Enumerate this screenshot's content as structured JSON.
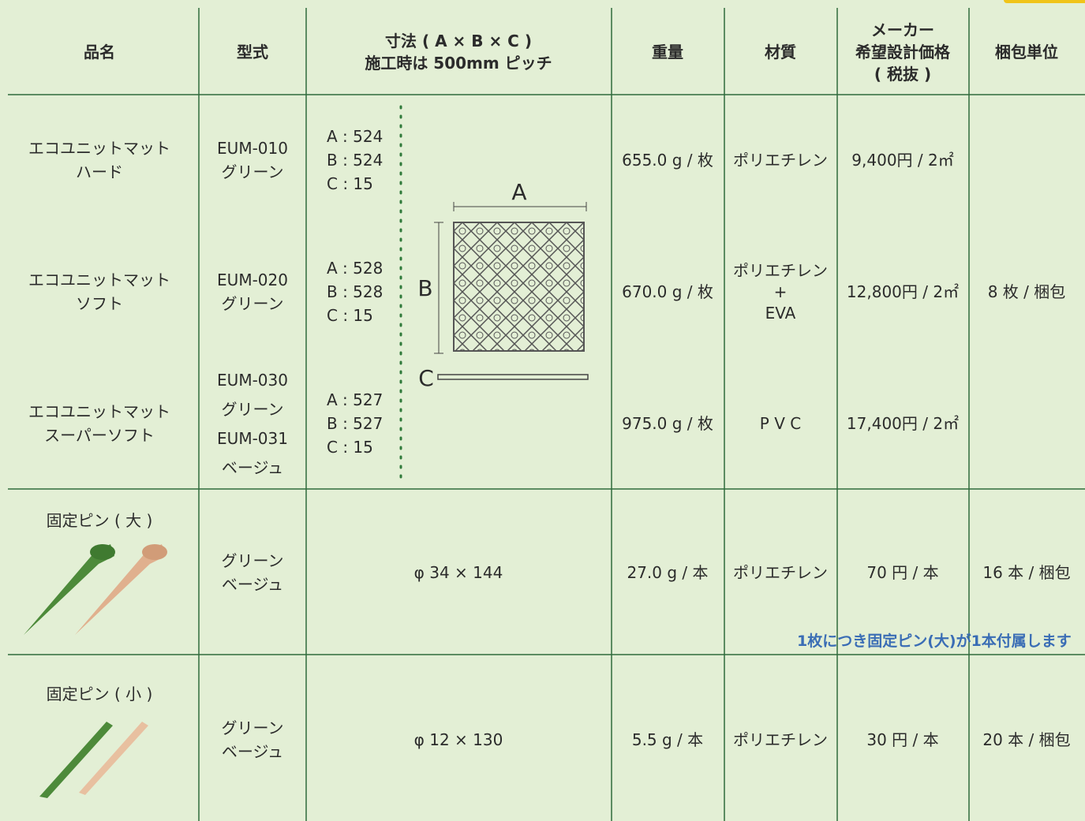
{
  "table": {
    "headers": [
      [
        "品名"
      ],
      [
        "型式"
      ],
      [
        "寸法 ( A × B × C )",
        "施工時は 500mm ピッチ"
      ],
      [
        "重量"
      ],
      [
        "材質"
      ],
      [
        "メーカー",
        "希望設計価格",
        "( 税抜 )"
      ],
      [
        "梱包単位"
      ]
    ],
    "mats": [
      {
        "name": [
          "エコユニットマット",
          "ハード"
        ],
        "model": [
          "EUM-010",
          "グリーン"
        ],
        "dims": [
          "A : 524",
          "B : 524",
          "C : 15"
        ],
        "weight": "655.0 g / 枚",
        "material": [
          "ポリエチレン"
        ],
        "price": "9,400円 / 2㎡"
      },
      {
        "name": [
          "エコユニットマット",
          "ソフト"
        ],
        "model": [
          "EUM-020",
          "グリーン"
        ],
        "dims": [
          "A : 528",
          "B : 528",
          "C : 15"
        ],
        "weight": "670.0 g / 枚",
        "material": [
          "ポリエチレン",
          "+",
          "EVA"
        ],
        "price": "12,800円 / 2㎡"
      },
      {
        "name": [
          "エコユニットマット",
          "スーパーソフト"
        ],
        "model": [
          "EUM-030",
          "グリーン",
          "EUM-031",
          "ベージュ"
        ],
        "dims": [
          "A : 527",
          "B : 527",
          "C : 15"
        ],
        "weight": "975.0 g / 枚",
        "material": [
          "P V C"
        ],
        "price": "17,400円 / 2㎡"
      }
    ],
    "mat_packaging": "8 枚 / 梱包",
    "diagram": {
      "a": "A",
      "b": "B",
      "c": "C"
    },
    "pins": [
      {
        "name": "固定ピン ( 大 )",
        "model": [
          "グリーン",
          "ベージュ"
        ],
        "size": "φ 34 × 144",
        "weight": "27.0 g / 本",
        "material": "ポリエチレン",
        "price": "70 円 / 本",
        "packaging": "16 本 / 梱包"
      },
      {
        "name": "固定ピン ( 小 )",
        "model": [
          "グリーン",
          "ベージュ"
        ],
        "size": "φ 12 × 130",
        "weight": "5.5 g / 本",
        "material": "ポリエチレン",
        "price": "30 円 / 本",
        "packaging": "20 本 / 梱包"
      }
    ],
    "note": "1枚につき固定ピン(大)が1本付属します"
  }
}
